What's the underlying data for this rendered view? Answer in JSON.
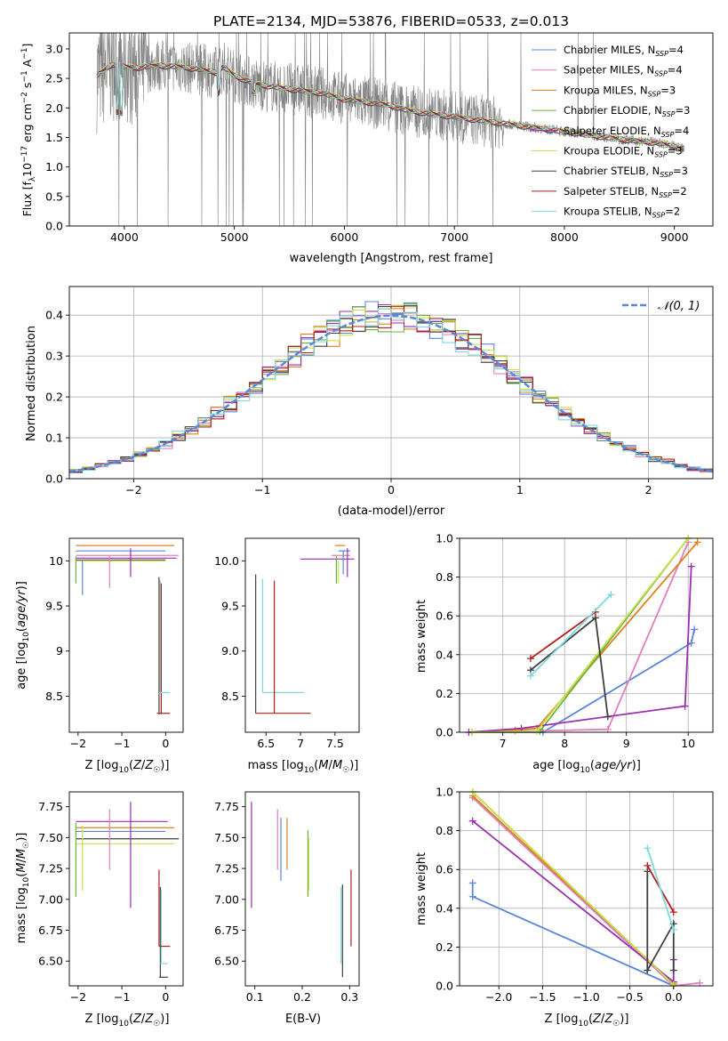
{
  "colors": {
    "Chabrier MILES": "#5b86d9",
    "Salpeter MILES": "#e07fc0",
    "Kroupa MILES": "#e0801f",
    "Chabrier ELODIE": "#6bb33d",
    "Salpeter ELODIE": "#9a2fb0",
    "Kroupa ELODIE": "#c9e04a",
    "Chabrier STELIB": "#404040",
    "Salpeter STELIB": "#b01f1f",
    "Kroupa STELIB": "#7fd8dc",
    "data": "#808080",
    "gauss": "#5b86d9",
    "grid": "#b0b0b0"
  },
  "chart_data": [
    {
      "id": "spectrum",
      "type": "line",
      "title": "PLATE=2134, MJD=53876, FIBERID=0533, z=0.013",
      "xlabel": "wavelength [Angstrom, rest frame]",
      "ylabel": "Flux [f_λ 10^-17 erg cm^-2 s^-1 A^-1]",
      "xlim": [
        3500,
        9350
      ],
      "ylim": [
        0,
        3.27
      ],
      "xticks": [
        4000,
        5000,
        6000,
        7000,
        8000,
        9000
      ],
      "yticks": [
        0.0,
        0.5,
        1.0,
        1.5,
        2.0,
        2.5,
        3.0
      ],
      "grid": false,
      "legend_position": "top-right",
      "legend": [
        {
          "name": "Chabrier MILES",
          "nssp": "4"
        },
        {
          "name": "Salpeter MILES",
          "nssp": "4"
        },
        {
          "name": "Kroupa MILES",
          "nssp": "3"
        },
        {
          "name": "Chabrier ELODIE",
          "nssp": "3"
        },
        {
          "name": "Salpeter ELODIE",
          "nssp": "4"
        },
        {
          "name": "Kroupa ELODIE",
          "nssp": "3"
        },
        {
          "name": "Chabrier STELIB",
          "nssp": "3"
        },
        {
          "name": "Salpeter STELIB",
          "nssp": "2"
        },
        {
          "name": "Kroupa STELIB",
          "nssp": "2"
        }
      ],
      "continuum": {
        "x": [
          3750,
          3900,
          4000,
          4100,
          4300,
          4500,
          4700,
          4850,
          4900,
          5000,
          5200,
          5400,
          5600,
          5800,
          6000,
          6200,
          6400,
          6600,
          6800,
          7000,
          7200,
          7400,
          7600,
          7800,
          8000,
          8200,
          8400,
          8600,
          8800,
          9000,
          9100
        ],
        "y": [
          2.55,
          2.75,
          2.7,
          2.68,
          2.72,
          2.7,
          2.65,
          2.6,
          2.7,
          2.55,
          2.4,
          2.35,
          2.3,
          2.25,
          2.15,
          2.1,
          2.05,
          1.95,
          1.9,
          1.85,
          1.8,
          1.75,
          1.7,
          1.65,
          1.6,
          1.55,
          1.5,
          1.45,
          1.42,
          1.35,
          1.3
        ]
      }
    },
    {
      "id": "residuals",
      "type": "line",
      "xlabel": "(data-model)/error",
      "ylabel": "Normed distribution",
      "xlim": [
        -2.5,
        2.5
      ],
      "ylim": [
        0,
        0.47
      ],
      "xticks": [
        -2,
        -1,
        0,
        1,
        2
      ],
      "yticks": [
        0.0,
        0.1,
        0.2,
        0.3,
        0.4
      ],
      "grid": true,
      "legend_position": "top-right",
      "gauss_label": "𝒩(0, 1)",
      "bin_width": 0.1
    },
    {
      "id": "age_vs_Z",
      "type": "scatter",
      "xlabel": "Z [log10(Z/Z⊙)]",
      "ylabel": "age [log10(age/yr)]",
      "xlim": [
        -2.2,
        0.4
      ],
      "ylim": [
        8.1,
        10.25
      ],
      "xticks": [
        -2,
        -1,
        0
      ],
      "yticks": [
        8.5,
        9.0,
        9.5,
        10.0
      ]
    },
    {
      "id": "age_vs_mass",
      "type": "scatter",
      "xlabel": "mass [log10(M/M⊙)]",
      "xlim": [
        6.2,
        7.85
      ],
      "ylim": [
        8.1,
        10.25
      ],
      "xticks": [
        6.5,
        7.0,
        7.5
      ],
      "yticks": [
        8.5,
        9.0,
        9.5,
        10.0
      ]
    },
    {
      "id": "weight_vs_age",
      "type": "line",
      "xlabel": "age [log10(age/yr)]",
      "ylabel": "mass weight",
      "xlim": [
        6.3,
        10.4
      ],
      "ylim": [
        0,
        1
      ],
      "xticks": [
        7,
        8,
        9,
        10
      ],
      "yticks": [
        0.0,
        0.2,
        0.4,
        0.6,
        0.8,
        1.0
      ],
      "grid": true,
      "series": [
        {
          "key": "Chabrier MILES",
          "x": [
            6.5,
            7.65,
            10.05,
            10.1
          ],
          "y": [
            0.0,
            0.0,
            0.46,
            0.53
          ]
        },
        {
          "key": "Salpeter MILES",
          "x": [
            6.5,
            8.7,
            10.0
          ],
          "y": [
            0.0,
            0.015,
            0.98
          ]
        },
        {
          "key": "Kroupa MILES",
          "x": [
            6.5,
            7.2,
            7.55,
            10.15
          ],
          "y": [
            0.0,
            0.01,
            0.02,
            0.98
          ]
        },
        {
          "key": "Chabrier ELODIE",
          "x": [
            6.5,
            7.6,
            10.0
          ],
          "y": [
            0.0,
            0.005,
            1.0
          ]
        },
        {
          "key": "Salpeter ELODIE",
          "x": [
            6.45,
            7.3,
            9.95,
            10.05
          ],
          "y": [
            0.0,
            0.02,
            0.135,
            0.855
          ]
        },
        {
          "key": "Kroupa ELODIE",
          "x": [
            6.5,
            7.55,
            10.0
          ],
          "y": [
            0.0,
            0.005,
            1.0
          ]
        },
        {
          "key": "Chabrier STELIB",
          "x": [
            7.45,
            8.5,
            8.7
          ],
          "y": [
            0.32,
            0.59,
            0.08
          ]
        },
        {
          "key": "Salpeter STELIB",
          "x": [
            7.45,
            8.5
          ],
          "y": [
            0.38,
            0.62
          ]
        },
        {
          "key": "Kroupa STELIB",
          "x": [
            7.45,
            8.75
          ],
          "y": [
            0.29,
            0.71
          ]
        }
      ]
    },
    {
      "id": "mass_vs_Z",
      "type": "scatter",
      "xlabel": "Z [log10(Z/Z⊙)]",
      "ylabel": "mass [log10(M/M⊙)]",
      "xlim": [
        -2.2,
        0.4
      ],
      "ylim": [
        6.3,
        7.87
      ],
      "xticks": [
        -2,
        -1,
        0
      ],
      "yticks": [
        6.5,
        6.75,
        7.0,
        7.25,
        7.5,
        7.75
      ]
    },
    {
      "id": "mass_vs_ebv",
      "type": "scatter",
      "xlabel": "E(B-V)",
      "xlim": [
        0.08,
        0.32
      ],
      "ylim": [
        6.3,
        7.87
      ],
      "xticks": [
        0.1,
        0.2,
        0.3
      ],
      "yticks": [
        6.5,
        6.75,
        7.0,
        7.25,
        7.5,
        7.75
      ]
    },
    {
      "id": "weight_vs_Z",
      "type": "line",
      "xlabel": "Z [log10(Z/Z⊙)]",
      "ylabel": "mass weight",
      "xlim": [
        -2.45,
        0.45
      ],
      "ylim": [
        0,
        1
      ],
      "xticks": [
        -2.0,
        -1.5,
        -1.0,
        -0.5,
        0.0
      ],
      "yticks": [
        0.0,
        0.2,
        0.4,
        0.6,
        0.8,
        1.0
      ],
      "grid": true,
      "series": [
        {
          "key": "Chabrier MILES",
          "x": [
            -2.3,
            -2.3,
            0.0
          ],
          "y": [
            0.53,
            0.46,
            0.0
          ]
        },
        {
          "key": "Salpeter MILES",
          "x": [
            -2.3,
            0.0,
            0.3
          ],
          "y": [
            0.97,
            0.0,
            0.015
          ]
        },
        {
          "key": "Kroupa MILES",
          "x": [
            -2.3,
            0.0
          ],
          "y": [
            0.98,
            0.01
          ]
        },
        {
          "key": "Chabrier ELODIE",
          "x": [
            -2.3,
            0.0
          ],
          "y": [
            1.0,
            0.005
          ]
        },
        {
          "key": "Salpeter ELODIE",
          "x": [
            -2.3,
            0.0,
            0.0,
            0.0
          ],
          "y": [
            0.85,
            0.02,
            0.02,
            0.135
          ]
        },
        {
          "key": "Kroupa ELODIE",
          "x": [
            -2.3,
            0.0
          ],
          "y": [
            1.0,
            0.005
          ]
        },
        {
          "key": "Chabrier STELIB",
          "x": [
            -0.3,
            -0.3,
            0.0,
            0.0
          ],
          "y": [
            0.59,
            0.08,
            0.32,
            0.08
          ]
        },
        {
          "key": "Salpeter STELIB",
          "x": [
            -0.3,
            0.0
          ],
          "y": [
            0.62,
            0.38
          ]
        },
        {
          "key": "Kroupa STELIB",
          "x": [
            -0.3,
            0.0
          ],
          "y": [
            0.71,
            0.29
          ]
        }
      ]
    }
  ]
}
